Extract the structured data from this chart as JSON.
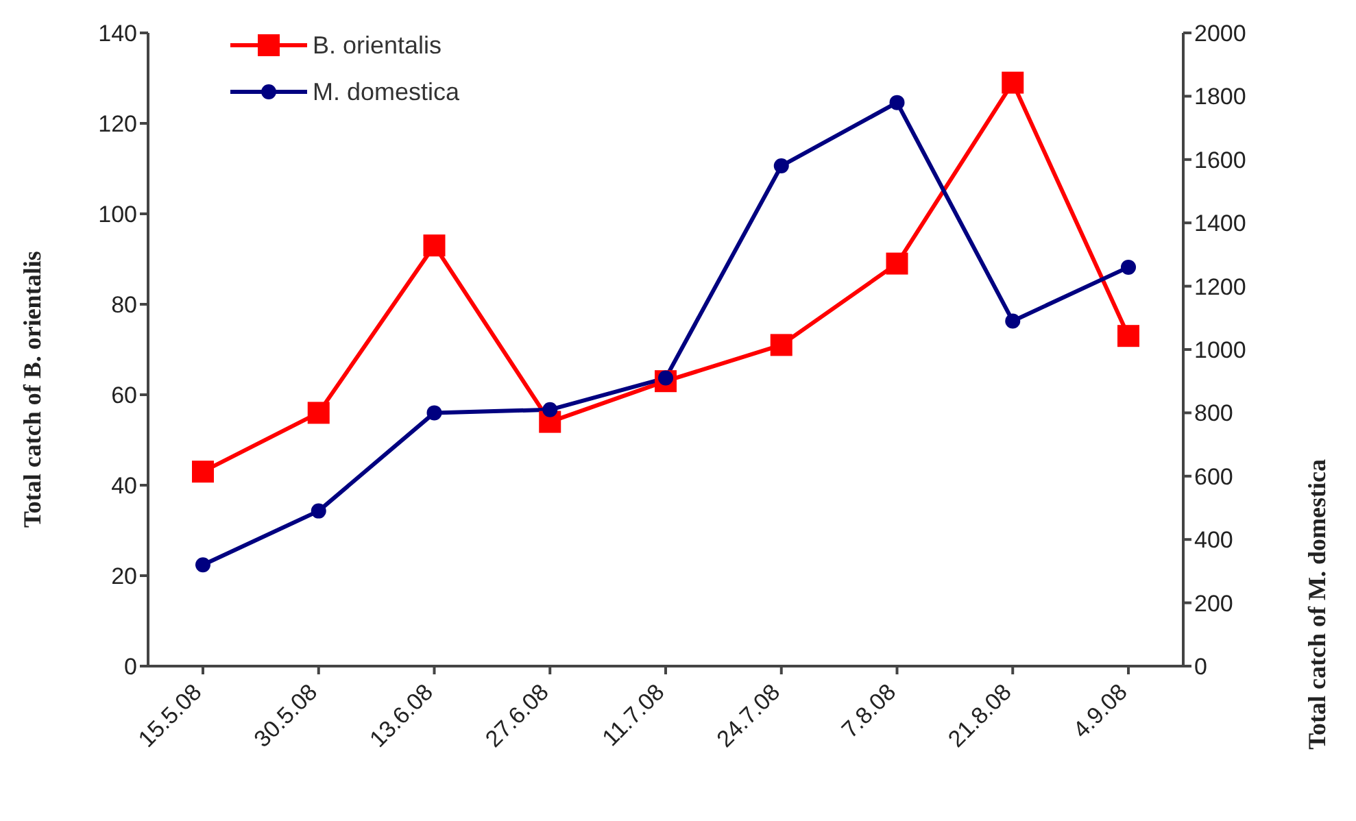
{
  "chart_data": {
    "type": "line",
    "categories": [
      "15.5.08",
      "30.5.08",
      "13.6.08",
      "27.6.08",
      "11.7.08",
      "24.7.08",
      "7.8.08",
      "21.8.08",
      "4.9.08"
    ],
    "series": [
      {
        "name": "B. orientalis",
        "color": "#ff0000",
        "marker": "square",
        "values": [
          43,
          56,
          93,
          54,
          63,
          71,
          89,
          129,
          73
        ]
      },
      {
        "name": "M. domestica",
        "color": "#000080",
        "marker": "circle",
        "axis": "y2",
        "values": [
          320,
          490,
          800,
          810,
          910,
          1580,
          1780,
          1090,
          1260
        ]
      }
    ],
    "ylabel": "Total catch of B. orientalis",
    "y2label": "Total catch of M. domestica",
    "ylim": [
      0,
      140
    ],
    "yticks": [
      0,
      20,
      40,
      60,
      80,
      100,
      120,
      140
    ],
    "y2lim": [
      0,
      2000
    ],
    "y2ticks": [
      0,
      200,
      400,
      600,
      800,
      1000,
      1200,
      1400,
      1600,
      1800,
      2000
    ],
    "legend": "top left",
    "grid": false,
    "line_style": "solid"
  }
}
